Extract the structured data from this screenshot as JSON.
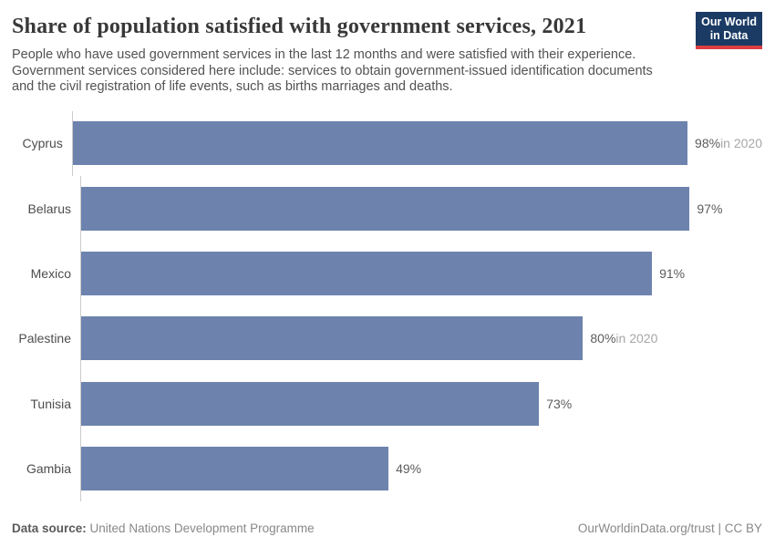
{
  "header": {
    "title": "Share of population satisfied with government services, 2021",
    "subtitle_lines": [
      "People who have used government services in the last 12 months and were satisfied with their experience.",
      "Government services considered here include: services to obtain government-issued identification documents",
      "and the civil registration of life events, such as births marriages and deaths."
    ],
    "logo_line1": "Our World",
    "logo_line2": "in Data"
  },
  "chart_data": {
    "type": "bar",
    "orientation": "horizontal",
    "title": "Share of population satisfied with government services, 2021",
    "categories": [
      "Cyprus",
      "Belarus",
      "Mexico",
      "Palestine",
      "Tunisia",
      "Gambia"
    ],
    "values": [
      98,
      97,
      91,
      80,
      73,
      49
    ],
    "value_suffix": "%",
    "notes": [
      "in 2020",
      "",
      "",
      "in 2020",
      "",
      ""
    ],
    "xlim": [
      0,
      100
    ],
    "grid": false,
    "legend": "none",
    "bar_color": "#6d83ae",
    "axis_line_color": "#cccccc"
  },
  "footer": {
    "source_label": "Data source:",
    "source_value": "United Nations Development Programme",
    "right_text": "OurWorldinData.org/trust | CC BY"
  },
  "colors": {
    "bar": "#6d83ae",
    "logo_bg": "#1b3a64",
    "logo_accent": "#dc3e42",
    "title_text": "#383838",
    "muted_text": "#a6a6a6"
  }
}
